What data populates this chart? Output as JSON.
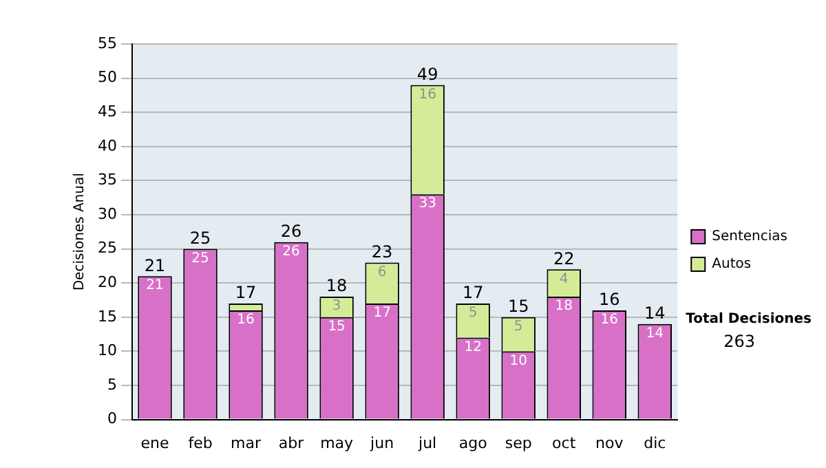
{
  "chart_data": {
    "type": "bar",
    "ylabel": "Decisiones Anual",
    "stacked": true,
    "categories": [
      "ene",
      "feb",
      "mar",
      "abr",
      "may",
      "jun",
      "jul",
      "ago",
      "sep",
      "oct",
      "nov",
      "dic"
    ],
    "series": [
      {
        "name": "Sentencias",
        "color": "#d870c8",
        "values": [
          21,
          25,
          16,
          26,
          15,
          17,
          33,
          12,
          10,
          18,
          16,
          14
        ],
        "value_labels": [
          "21",
          "25",
          "16",
          "26",
          "15",
          "17",
          "33",
          "12",
          "10",
          "18",
          "16",
          "14"
        ]
      },
      {
        "name": "Autos",
        "color": "#d4ec98",
        "values": [
          0,
          0,
          1,
          0,
          3,
          6,
          16,
          5,
          5,
          4,
          0,
          0
        ],
        "value_labels": [
          null,
          null,
          null,
          null,
          "3",
          "6",
          "16",
          "5",
          "5",
          "4",
          null,
          null
        ]
      }
    ],
    "totals": [
      "21",
      "25",
      "17",
      "26",
      "18",
      "23",
      "49",
      "17",
      "15",
      "22",
      "16",
      "14"
    ],
    "ylim": [
      0,
      55
    ],
    "yticks": [
      0,
      5,
      10,
      15,
      20,
      25,
      30,
      35,
      40,
      45,
      50,
      55
    ],
    "grid": "y",
    "legend": "right",
    "annotations": [
      "Total Decisiones",
      "263"
    ]
  }
}
